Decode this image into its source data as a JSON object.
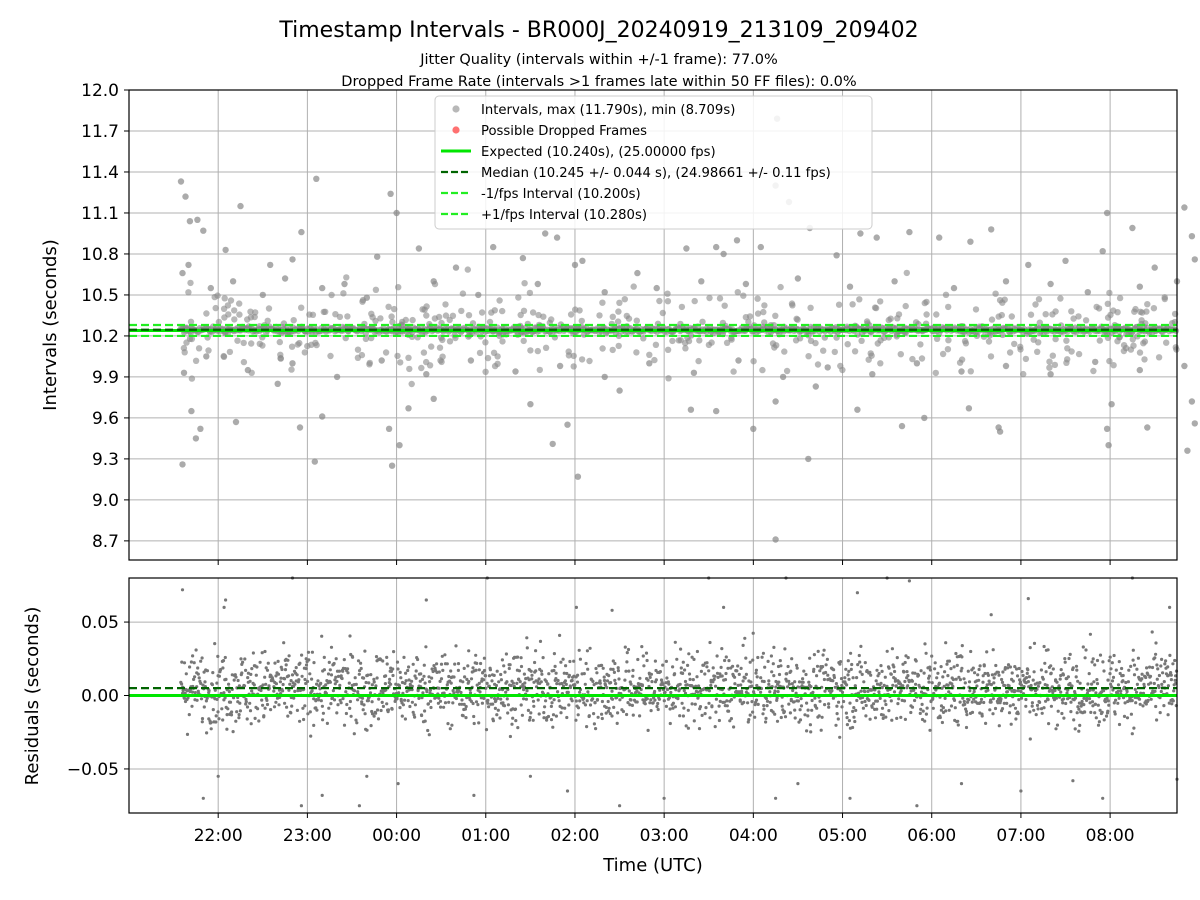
{
  "chart_data": [
    {
      "type": "scatter",
      "title": "Timestamp Intervals - BR000J_20240919_213109_209402",
      "subtitle_lines": [
        "Jitter Quality (intervals within +/-1 frame): 77.0%",
        "Dropped Frame Rate (intervals >1 frames late within 50 FF files): 0.0%"
      ],
      "xlabel": "",
      "ylabel": "Intervals (seconds)",
      "ylim": [
        8.56,
        12.0
      ],
      "yticks": [
        8.7,
        9.0,
        9.3,
        9.6,
        9.9,
        10.2,
        10.5,
        10.8,
        11.1,
        11.4,
        11.7,
        12.0
      ],
      "ytick_labels": [
        "8.7",
        "9.0",
        "9.3",
        "9.6",
        "9.9",
        "10.2",
        "10.5",
        "10.8",
        "11.1",
        "11.4",
        "11.7",
        "12.0"
      ],
      "grid": true,
      "legend_position": "top-center",
      "legend": [
        {
          "label": "Intervals, max (11.790s), min (8.709s)",
          "marker": "circle",
          "color": "#888888"
        },
        {
          "label": "Possible Dropped Frames",
          "marker": "circle",
          "color": "#ff4d4d"
        },
        {
          "label": "Expected (10.240s), (25.00000 fps)",
          "marker": "line",
          "color": "#00e600"
        },
        {
          "label": "Median (10.245 +/- 0.044 s), (24.98661 +/- 0.11 fps)",
          "marker": "dashed",
          "color": "#006400"
        },
        {
          "label": "-1/fps Interval (10.200s)",
          "marker": "dashed",
          "color": "#22ee22"
        },
        {
          "label": "+1/fps Interval (10.280s)",
          "marker": "dashed",
          "color": "#22ee22"
        }
      ],
      "hlines": [
        {
          "name": "Expected",
          "y": 10.24,
          "style": "solid",
          "color": "#00e600"
        },
        {
          "name": "Median",
          "y": 10.245,
          "style": "dashed",
          "color": "#006400"
        },
        {
          "name": "-1/fps",
          "y": 10.2,
          "style": "dashed",
          "color": "#22ee22"
        },
        {
          "name": "+1/fps",
          "y": 10.28,
          "style": "dashed",
          "color": "#22ee22"
        }
      ],
      "series": [
        {
          "marker_color": "#888888",
          "points": [
            {
              "x": "21:35",
              "y": 11.33
            },
            {
              "x": "21:38",
              "y": 11.22
            },
            {
              "x": "21:41",
              "y": 11.04
            },
            {
              "x": "21:46",
              "y": 11.05
            },
            {
              "x": "21:50",
              "y": 10.97
            },
            {
              "x": "22:05",
              "y": 10.83
            },
            {
              "x": "22:15",
              "y": 11.15
            },
            {
              "x": "22:35",
              "y": 10.72
            },
            {
              "x": "22:50",
              "y": 10.76
            },
            {
              "x": "22:56",
              "y": 10.96
            },
            {
              "x": "23:06",
              "y": 11.35
            },
            {
              "x": "23:25",
              "y": 10.58
            },
            {
              "x": "23:47",
              "y": 10.78
            },
            {
              "x": "23:56",
              "y": 11.24
            },
            {
              "x": "00:00",
              "y": 11.1
            },
            {
              "x": "00:15",
              "y": 10.84
            },
            {
              "x": "00:40",
              "y": 10.7
            },
            {
              "x": "01:05",
              "y": 10.85
            },
            {
              "x": "01:25",
              "y": 10.77
            },
            {
              "x": "01:40",
              "y": 10.95
            },
            {
              "x": "01:48",
              "y": 10.92
            },
            {
              "x": "02:05",
              "y": 10.75
            },
            {
              "x": "02:42",
              "y": 10.66
            },
            {
              "x": "03:15",
              "y": 10.84
            },
            {
              "x": "03:35",
              "y": 10.85
            },
            {
              "x": "03:49",
              "y": 10.9
            },
            {
              "x": "04:05",
              "y": 10.85
            },
            {
              "x": "04:15",
              "y": 11.3
            },
            {
              "x": "04:16",
              "y": 11.79
            },
            {
              "x": "04:24",
              "y": 11.18
            },
            {
              "x": "04:38",
              "y": 10.99
            },
            {
              "x": "04:56",
              "y": 10.79
            },
            {
              "x": "05:12",
              "y": 10.95
            },
            {
              "x": "05:23",
              "y": 10.92
            },
            {
              "x": "05:45",
              "y": 10.96
            },
            {
              "x": "06:05",
              "y": 10.92
            },
            {
              "x": "06:26",
              "y": 10.89
            },
            {
              "x": "06:40",
              "y": 10.98
            },
            {
              "x": "07:05",
              "y": 10.72
            },
            {
              "x": "07:30",
              "y": 10.75
            },
            {
              "x": "07:55",
              "y": 10.82
            },
            {
              "x": "07:58",
              "y": 11.1
            },
            {
              "x": "08:15",
              "y": 10.99
            },
            {
              "x": "08:30",
              "y": 10.7
            },
            {
              "x": "08:50",
              "y": 11.14
            },
            {
              "x": "08:55",
              "y": 10.93
            },
            {
              "x": "08:57",
              "y": 10.76
            },
            {
              "x": "21:36",
              "y": 10.66
            },
            {
              "x": "21:40",
              "y": 10.72
            },
            {
              "x": "21:55",
              "y": 10.55
            },
            {
              "x": "22:10",
              "y": 10.6
            },
            {
              "x": "22:30",
              "y": 10.5
            },
            {
              "x": "22:45",
              "y": 10.62
            },
            {
              "x": "23:10",
              "y": 10.55
            },
            {
              "x": "23:40",
              "y": 10.48
            },
            {
              "x": "00:25",
              "y": 10.6
            },
            {
              "x": "00:55",
              "y": 10.5
            },
            {
              "x": "01:35",
              "y": 10.58
            },
            {
              "x": "02:20",
              "y": 10.52
            },
            {
              "x": "02:55",
              "y": 10.55
            },
            {
              "x": "03:25",
              "y": 10.6
            },
            {
              "x": "03:55",
              "y": 10.58
            },
            {
              "x": "04:30",
              "y": 10.62
            },
            {
              "x": "05:05",
              "y": 10.56
            },
            {
              "x": "05:35",
              "y": 10.6
            },
            {
              "x": "06:15",
              "y": 10.55
            },
            {
              "x": "06:50",
              "y": 10.6
            },
            {
              "x": "07:20",
              "y": 10.58
            },
            {
              "x": "07:45",
              "y": 10.52
            },
            {
              "x": "08:20",
              "y": 10.56
            },
            {
              "x": "08:45",
              "y": 10.6
            },
            {
              "x": "21:37",
              "y": 9.93
            },
            {
              "x": "21:42",
              "y": 9.65
            },
            {
              "x": "21:45",
              "y": 9.45
            },
            {
              "x": "21:48",
              "y": 9.52
            },
            {
              "x": "21:36",
              "y": 9.26
            },
            {
              "x": "22:12",
              "y": 9.57
            },
            {
              "x": "22:40",
              "y": 9.85
            },
            {
              "x": "22:55",
              "y": 9.53
            },
            {
              "x": "23:05",
              "y": 9.28
            },
            {
              "x": "23:10",
              "y": 9.61
            },
            {
              "x": "23:55",
              "y": 9.52
            },
            {
              "x": "23:57",
              "y": 9.25
            },
            {
              "x": "00:02",
              "y": 9.4
            },
            {
              "x": "00:08",
              "y": 9.67
            },
            {
              "x": "00:25",
              "y": 9.74
            },
            {
              "x": "01:30",
              "y": 9.7
            },
            {
              "x": "01:45",
              "y": 9.41
            },
            {
              "x": "01:55",
              "y": 9.55
            },
            {
              "x": "02:02",
              "y": 9.17
            },
            {
              "x": "02:30",
              "y": 9.8
            },
            {
              "x": "03:18",
              "y": 9.66
            },
            {
              "x": "03:35",
              "y": 9.65
            },
            {
              "x": "04:00",
              "y": 9.52
            },
            {
              "x": "04:15",
              "y": 9.72
            },
            {
              "x": "04:37",
              "y": 9.3
            },
            {
              "x": "04:42",
              "y": 9.83
            },
            {
              "x": "05:10",
              "y": 9.66
            },
            {
              "x": "05:40",
              "y": 9.54
            },
            {
              "x": "05:55",
              "y": 9.6
            },
            {
              "x": "06:25",
              "y": 9.67
            },
            {
              "x": "06:45",
              "y": 9.53
            },
            {
              "x": "06:46",
              "y": 9.5
            },
            {
              "x": "07:58",
              "y": 9.52
            },
            {
              "x": "07:59",
              "y": 9.4
            },
            {
              "x": "08:01",
              "y": 9.7
            },
            {
              "x": "08:25",
              "y": 9.53
            },
            {
              "x": "08:52",
              "y": 9.36
            },
            {
              "x": "08:55",
              "y": 9.72
            },
            {
              "x": "08:57",
              "y": 9.56
            },
            {
              "x": "21:52",
              "y": 10.05
            },
            {
              "x": "22:20",
              "y": 9.95
            },
            {
              "x": "22:50",
              "y": 10.0
            },
            {
              "x": "23:20",
              "y": 9.9
            },
            {
              "x": "23:50",
              "y": 10.02
            },
            {
              "x": "00:20",
              "y": 9.92
            },
            {
              "x": "00:50",
              "y": 10.02
            },
            {
              "x": "01:20",
              "y": 9.94
            },
            {
              "x": "01:50",
              "y": 9.98
            },
            {
              "x": "02:20",
              "y": 9.9
            },
            {
              "x": "02:50",
              "y": 10.0
            },
            {
              "x": "03:20",
              "y": 9.93
            },
            {
              "x": "03:50",
              "y": 10.02
            },
            {
              "x": "04:20",
              "y": 9.9
            },
            {
              "x": "04:50",
              "y": 9.97
            },
            {
              "x": "05:20",
              "y": 9.92
            },
            {
              "x": "05:50",
              "y": 10.0
            },
            {
              "x": "06:20",
              "y": 9.94
            },
            {
              "x": "06:50",
              "y": 9.98
            },
            {
              "x": "07:20",
              "y": 9.92
            },
            {
              "x": "07:50",
              "y": 10.01
            },
            {
              "x": "08:20",
              "y": 9.95
            },
            {
              "x": "08:50",
              "y": 9.98
            },
            {
              "x": "04:15",
              "y": 8.71
            },
            {
              "x": "02:00",
              "y": 10.72
            },
            {
              "x": "03:40",
              "y": 10.8
            }
          ]
        }
      ]
    },
    {
      "type": "scatter",
      "title": "",
      "xlabel": "Time (UTC)",
      "ylabel": "Residuals (seconds)",
      "ylim": [
        -0.08,
        0.08
      ],
      "yticks": [
        -0.05,
        0.0,
        0.05
      ],
      "ytick_labels": [
        "−0.05",
        "0.00",
        "0.05"
      ],
      "xticks": [
        "22:00",
        "23:00",
        "00:00",
        "01:00",
        "02:00",
        "03:00",
        "04:00",
        "05:00",
        "06:00",
        "07:00",
        "08:00"
      ],
      "xlim": [
        "21:00",
        "08:45"
      ],
      "grid": true,
      "hlines": [
        {
          "name": "Expected",
          "y": 0.0,
          "style": "solid",
          "color": "#00e600"
        },
        {
          "name": "Median",
          "y": 0.005,
          "style": "dashed",
          "color": "#006400"
        }
      ],
      "series": [
        {
          "marker_color": "#777777",
          "x_start": "21:35",
          "x_end": "08:45",
          "spread": 0.025,
          "points": [
            {
              "x": "21:36",
              "y": 0.072
            },
            {
              "x": "21:50",
              "y": -0.07
            },
            {
              "x": "22:05",
              "y": 0.065
            },
            {
              "x": "22:04",
              "y": 0.06
            },
            {
              "x": "22:00",
              "y": -0.055
            },
            {
              "x": "22:50",
              "y": 0.08
            },
            {
              "x": "22:56",
              "y": -0.075
            },
            {
              "x": "23:10",
              "y": -0.068
            },
            {
              "x": "23:40",
              "y": -0.055
            },
            {
              "x": "23:35",
              "y": -0.075
            },
            {
              "x": "00:01",
              "y": -0.06
            },
            {
              "x": "00:20",
              "y": 0.065
            },
            {
              "x": "00:52",
              "y": -0.068
            },
            {
              "x": "01:01",
              "y": 0.08
            },
            {
              "x": "01:30",
              "y": -0.055
            },
            {
              "x": "01:55",
              "y": -0.065
            },
            {
              "x": "02:01",
              "y": 0.06
            },
            {
              "x": "02:25",
              "y": 0.058
            },
            {
              "x": "02:30",
              "y": -0.075
            },
            {
              "x": "03:00",
              "y": -0.07
            },
            {
              "x": "03:30",
              "y": 0.08
            },
            {
              "x": "03:40",
              "y": 0.06
            },
            {
              "x": "04:15",
              "y": -0.07
            },
            {
              "x": "04:22",
              "y": 0.08
            },
            {
              "x": "04:30",
              "y": -0.06
            },
            {
              "x": "05:05",
              "y": -0.07
            },
            {
              "x": "05:10",
              "y": 0.07
            },
            {
              "x": "05:30",
              "y": 0.08
            },
            {
              "x": "05:45",
              "y": 0.078
            },
            {
              "x": "05:50",
              "y": -0.075
            },
            {
              "x": "06:20",
              "y": -0.06
            },
            {
              "x": "06:40",
              "y": 0.055
            },
            {
              "x": "07:00",
              "y": -0.065
            },
            {
              "x": "07:05",
              "y": 0.066
            },
            {
              "x": "07:35",
              "y": -0.058
            },
            {
              "x": "07:55",
              "y": -0.07
            },
            {
              "x": "08:15",
              "y": 0.08
            },
            {
              "x": "08:40",
              "y": 0.06
            },
            {
              "x": "08:45",
              "y": -0.057
            }
          ]
        }
      ]
    }
  ]
}
